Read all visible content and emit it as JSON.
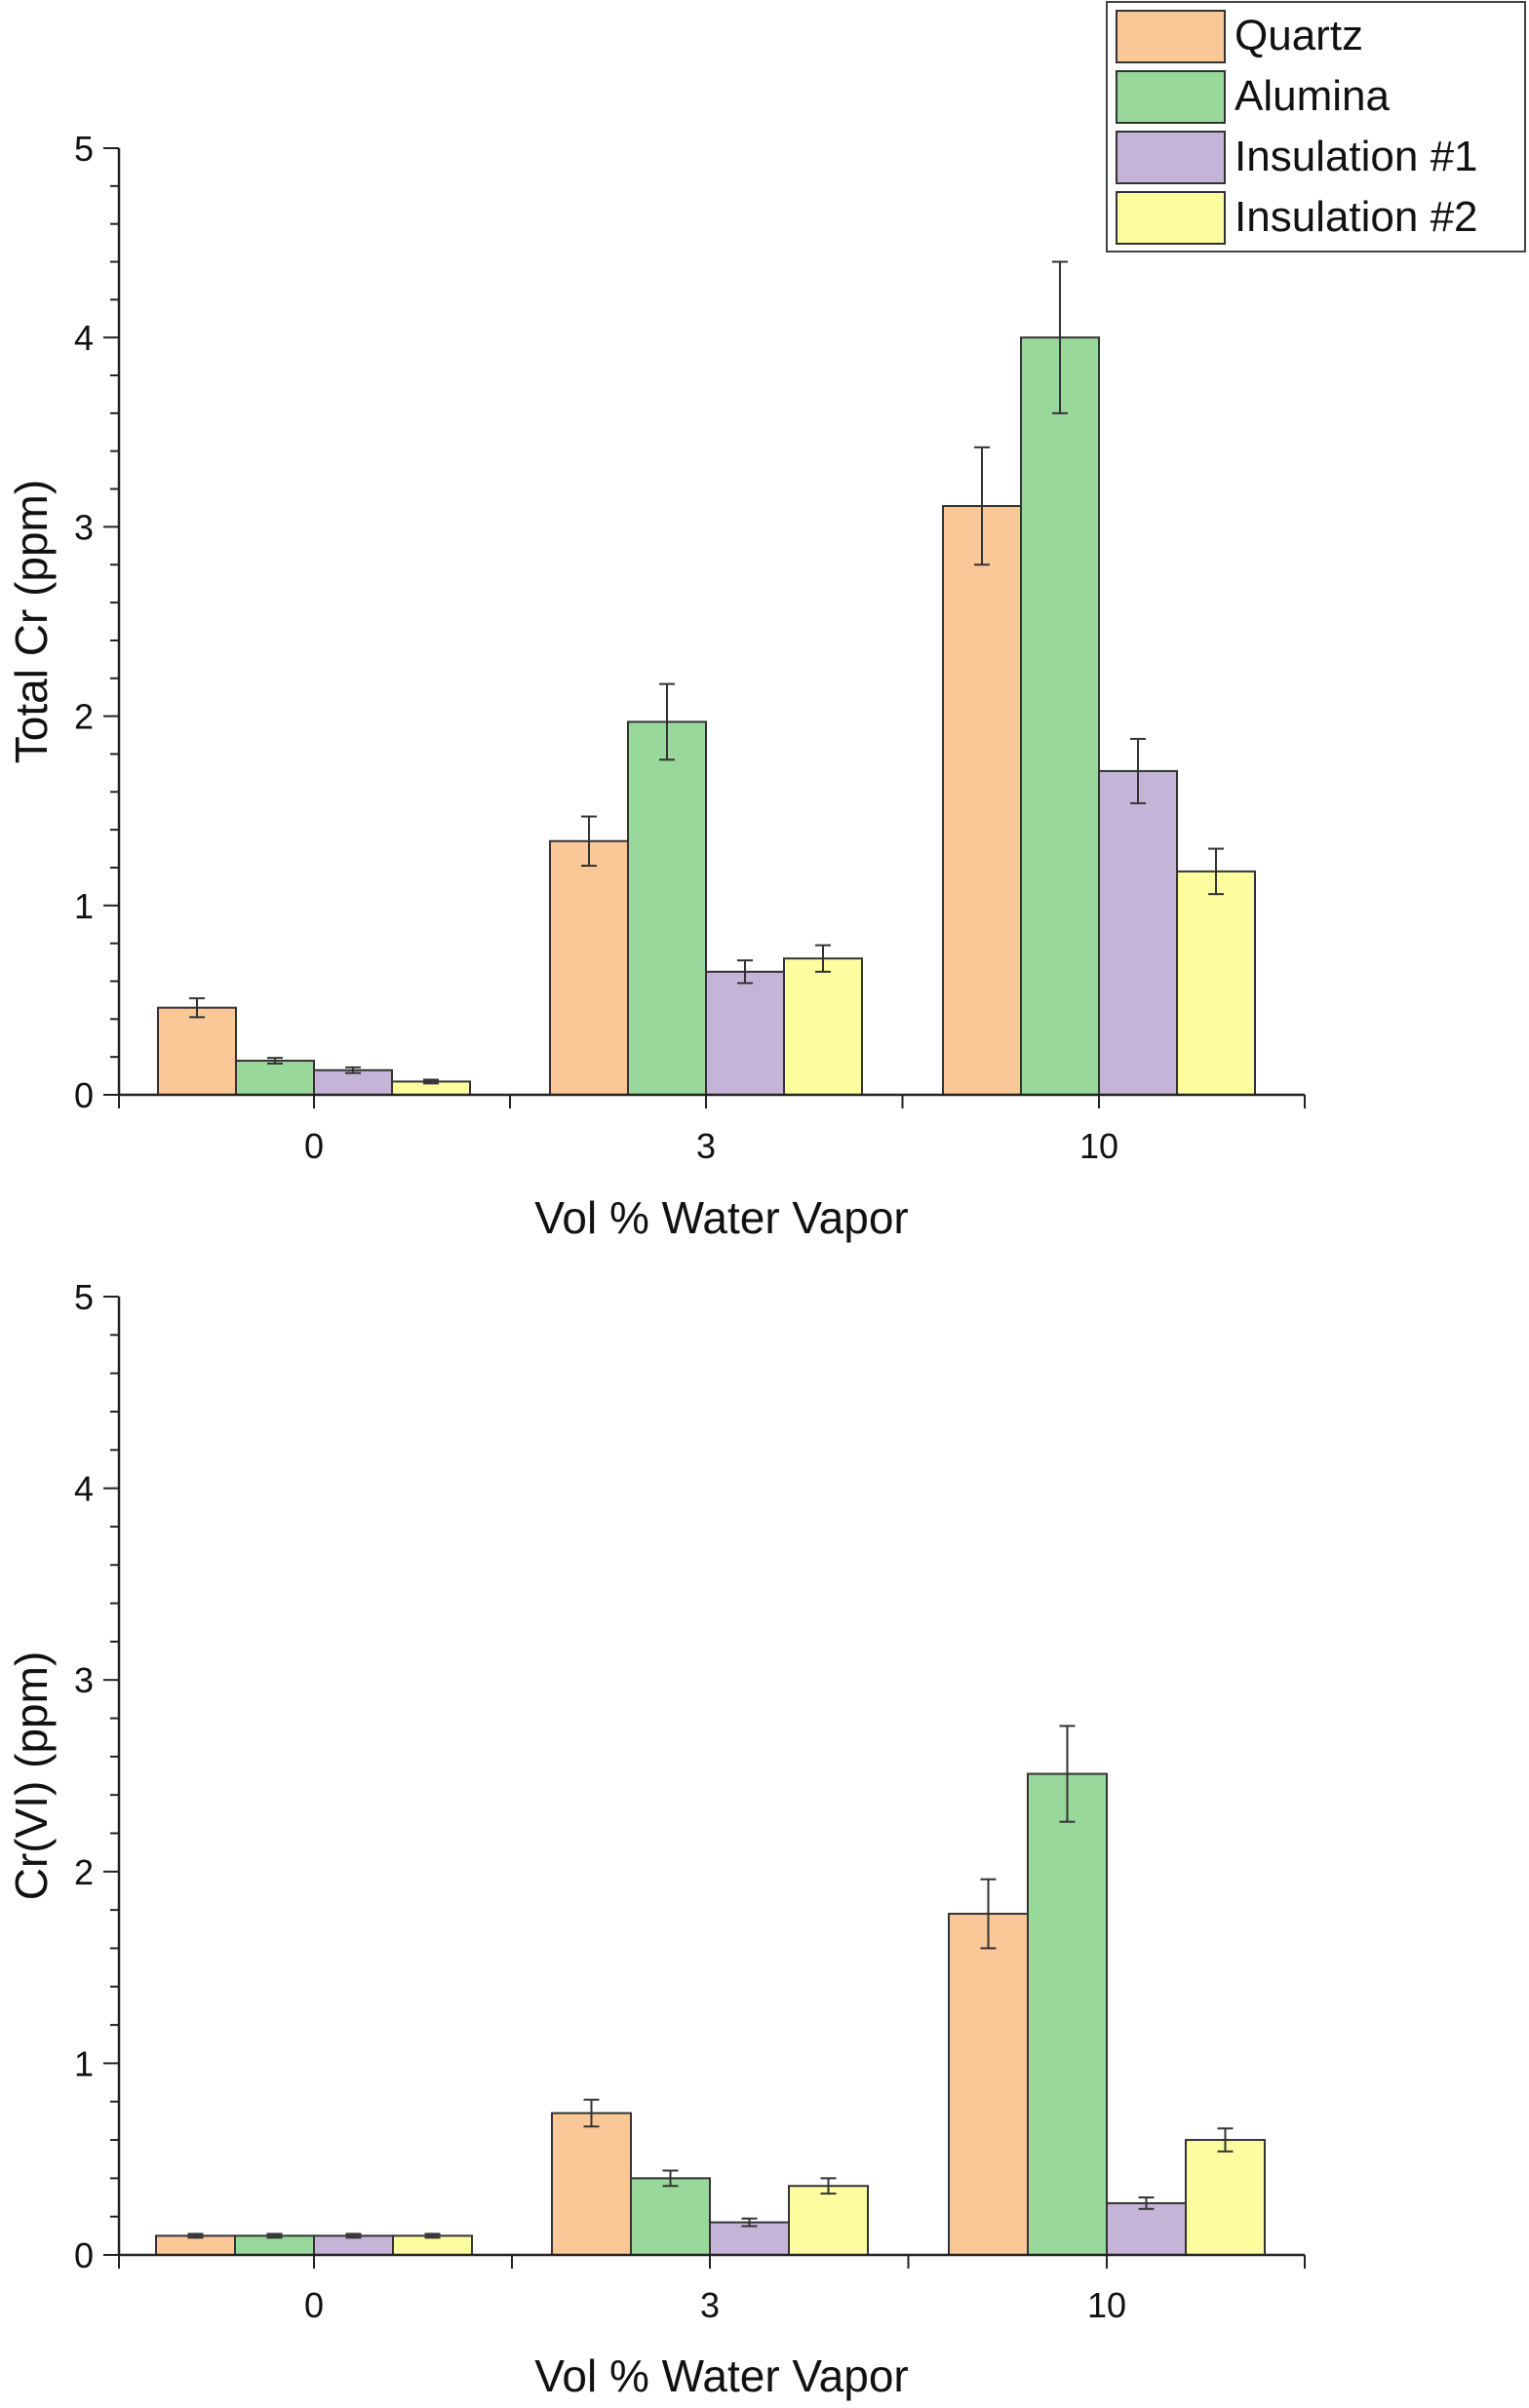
{
  "colors": {
    "Quartz": "#f9c896",
    "Alumina": "#98d89a",
    "Insulation #1": "#c6b4d8",
    "Insulation #2": "#fdfda0",
    "axis": "#222222",
    "bar_stroke": "#333333"
  },
  "legend": {
    "placement": "top-right",
    "items": [
      "Quartz",
      "Alumina",
      "Insulation #1",
      "Insulation #2"
    ]
  },
  "chart_data": [
    {
      "type": "bar",
      "title": "",
      "xlabel": "Vol % Water Vapor",
      "ylabel": "Total Cr (ppm)",
      "categories": [
        "0",
        "3",
        "10"
      ],
      "ylim": [
        0,
        5
      ],
      "yticks": [
        "0",
        "1",
        "2",
        "3",
        "4",
        "5"
      ],
      "grid": false,
      "series": [
        {
          "name": "Quartz",
          "values": [
            0.46,
            1.34,
            3.11
          ],
          "errors": [
            0.05,
            0.13,
            0.31
          ]
        },
        {
          "name": "Alumina",
          "values": [
            0.18,
            1.97,
            4.0
          ],
          "errors": [
            0.015,
            0.2,
            0.4
          ]
        },
        {
          "name": "Insulation #1",
          "values": [
            0.13,
            0.65,
            1.71
          ],
          "errors": [
            0.015,
            0.06,
            0.17
          ]
        },
        {
          "name": "Insulation #2",
          "values": [
            0.07,
            0.72,
            1.18
          ],
          "errors": [
            0.01,
            0.07,
            0.12
          ]
        }
      ]
    },
    {
      "type": "bar",
      "title": "",
      "xlabel": "Vol % Water Vapor",
      "ylabel": "Cr(VI) (ppm)",
      "categories": [
        "0",
        "3",
        "10"
      ],
      "ylim": [
        0,
        5
      ],
      "yticks": [
        "0",
        "1",
        "2",
        "3",
        "4",
        "5"
      ],
      "grid": false,
      "series": [
        {
          "name": "Quartz",
          "values": [
            0.1,
            0.74,
            1.78
          ],
          "errors": [
            0.01,
            0.07,
            0.18
          ]
        },
        {
          "name": "Alumina",
          "values": [
            0.1,
            0.4,
            2.51
          ],
          "errors": [
            0.01,
            0.04,
            0.25
          ]
        },
        {
          "name": "Insulation #1",
          "values": [
            0.1,
            0.17,
            0.27
          ],
          "errors": [
            0.01,
            0.02,
            0.03
          ]
        },
        {
          "name": "Insulation #2",
          "values": [
            0.1,
            0.36,
            0.6
          ],
          "errors": [
            0.01,
            0.04,
            0.06
          ]
        }
      ]
    }
  ]
}
